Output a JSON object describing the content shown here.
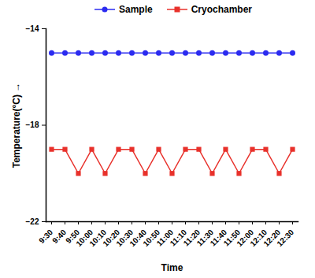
{
  "chart_data": {
    "type": "line",
    "x_label": "Time",
    "y_label": "Temperature(°C)",
    "categories": [
      "9:30",
      "9:40",
      "9:50",
      "10:00",
      "10:10",
      "10:20",
      "10:30",
      "10:40",
      "10:50",
      "11:00",
      "11:10",
      "11:20",
      "11:30",
      "11:40",
      "11:50",
      "12:00",
      "12:10",
      "12:20",
      "12:30"
    ],
    "series": [
      {
        "name": "Sample",
        "color": "#2b2bf0",
        "marker": "circle",
        "line_style": "solid",
        "values": [
          -15,
          -15,
          -15,
          -15,
          -15,
          -15,
          -15,
          -15,
          -15,
          -15,
          -15,
          -15,
          -15,
          -15,
          -15,
          -15,
          -15,
          -15,
          -15
        ]
      },
      {
        "name": "Cryochamber",
        "color": "#e8312b",
        "marker": "square",
        "line_style": "solid",
        "values": [
          -19,
          -19,
          -20,
          -19,
          -20,
          -19,
          -19,
          -20,
          -19,
          -20,
          -19,
          -19,
          -20,
          -19,
          -20,
          -19,
          -19,
          -20,
          -19
        ]
      }
    ],
    "ylim": [
      -22,
      -14
    ],
    "yticks": [
      -22,
      -18,
      -14
    ],
    "grid": false,
    "legend": "top"
  }
}
